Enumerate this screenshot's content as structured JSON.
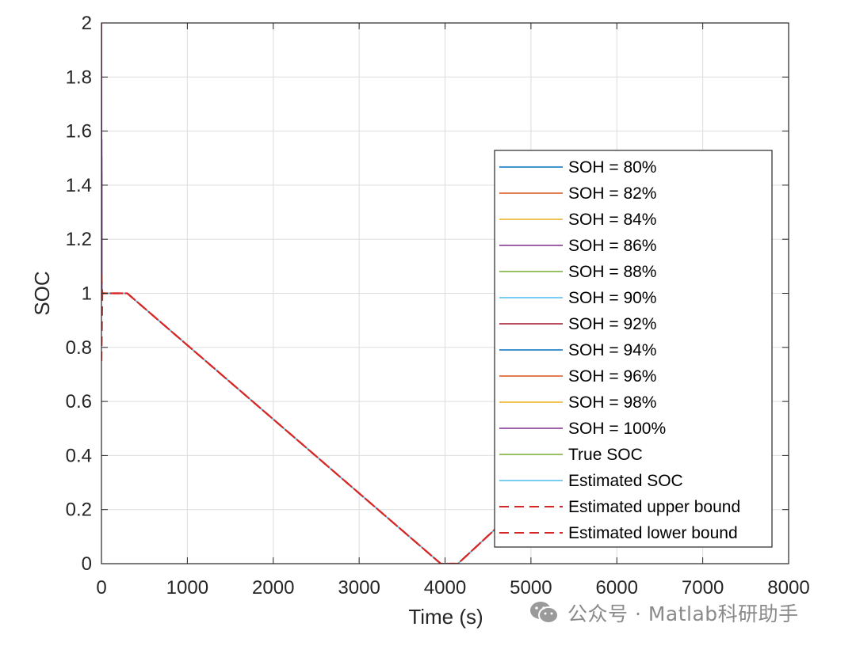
{
  "chart_data": {
    "type": "line",
    "title": "",
    "xlabel": "Time (s)",
    "ylabel": "SOC",
    "xlim": [
      0,
      8000
    ],
    "ylim": [
      0,
      2
    ],
    "grid": true,
    "legend_position": "right",
    "x_ticks": [
      0,
      1000,
      2000,
      3000,
      4000,
      5000,
      6000,
      7000,
      8000
    ],
    "x_tick_labels": [
      "0",
      "1000",
      "2000",
      "3000",
      "4000",
      "5000",
      "6000",
      "7000",
      "8000"
    ],
    "y_ticks": [
      0,
      0.2,
      0.4,
      0.6,
      0.8,
      1,
      1.2,
      1.4,
      1.6,
      1.8,
      2
    ],
    "y_tick_labels": [
      "0",
      "0.2",
      "0.4",
      "0.6",
      "0.8",
      "1",
      "1.2",
      "1.4",
      "1.6",
      "1.8",
      "2"
    ],
    "series": [
      {
        "name": "SOH = 80%",
        "color": "#0072BD",
        "style": "solid",
        "x": [
          0,
          5
        ],
        "y": [
          2,
          1
        ]
      },
      {
        "name": "SOH = 82%",
        "color": "#D95319",
        "style": "solid",
        "x": [
          0,
          5
        ],
        "y": [
          2,
          1
        ]
      },
      {
        "name": "SOH = 84%",
        "color": "#EDB120",
        "style": "solid",
        "x": [
          0,
          5
        ],
        "y": [
          2,
          1
        ]
      },
      {
        "name": "SOH = 86%",
        "color": "#7E2F8E",
        "style": "solid",
        "x": [
          0,
          5
        ],
        "y": [
          2,
          1
        ]
      },
      {
        "name": "SOH = 88%",
        "color": "#77AC30",
        "style": "solid",
        "x": [
          0,
          5
        ],
        "y": [
          2,
          1
        ]
      },
      {
        "name": "SOH = 90%",
        "color": "#4DBEEE",
        "style": "solid",
        "x": [
          0,
          5
        ],
        "y": [
          2,
          1
        ]
      },
      {
        "name": "SOH = 92%",
        "color": "#A2142F",
        "style": "solid",
        "x": [
          0,
          5
        ],
        "y": [
          2,
          1
        ]
      },
      {
        "name": "SOH = 94%",
        "color": "#0072BD",
        "style": "solid",
        "x": [
          0,
          5
        ],
        "y": [
          2,
          1
        ]
      },
      {
        "name": "SOH = 96%",
        "color": "#D95319",
        "style": "solid",
        "x": [
          0,
          5
        ],
        "y": [
          2,
          1
        ]
      },
      {
        "name": "SOH = 98%",
        "color": "#EDB120",
        "style": "solid",
        "x": [
          0,
          5
        ],
        "y": [
          2,
          1
        ]
      },
      {
        "name": "SOH = 100%",
        "color": "#7E2F8E",
        "style": "solid",
        "x": [
          0,
          5
        ],
        "y": [
          2,
          1
        ]
      },
      {
        "name": "True SOC",
        "color": "#77AC30",
        "style": "solid",
        "x": [
          0,
          300,
          3950,
          4150,
          5000
        ],
        "y": [
          1,
          1,
          0,
          0,
          0.25
        ]
      },
      {
        "name": "Estimated SOC",
        "color": "#4DBEEE",
        "style": "solid",
        "x": [
          0,
          300,
          3950,
          4150,
          5000
        ],
        "y": [
          1,
          1,
          0,
          0,
          0.25
        ]
      },
      {
        "name": "Estimated upper bound",
        "color": "#D62728",
        "style": "dashed",
        "x": [
          0,
          10,
          300,
          3950,
          4150,
          5000
        ],
        "y": [
          1.07,
          1,
          1,
          0,
          0,
          0.25
        ]
      },
      {
        "name": "Estimated lower bound",
        "color": "#D62728",
        "style": "dashed",
        "x": [
          0,
          10,
          300,
          3950,
          4150,
          5000
        ],
        "y": [
          0.75,
          1,
          1,
          0,
          0,
          0.25
        ]
      }
    ]
  },
  "watermark": {
    "text": "公众号 · Matlab科研助手",
    "icon": "wechat-icon"
  }
}
